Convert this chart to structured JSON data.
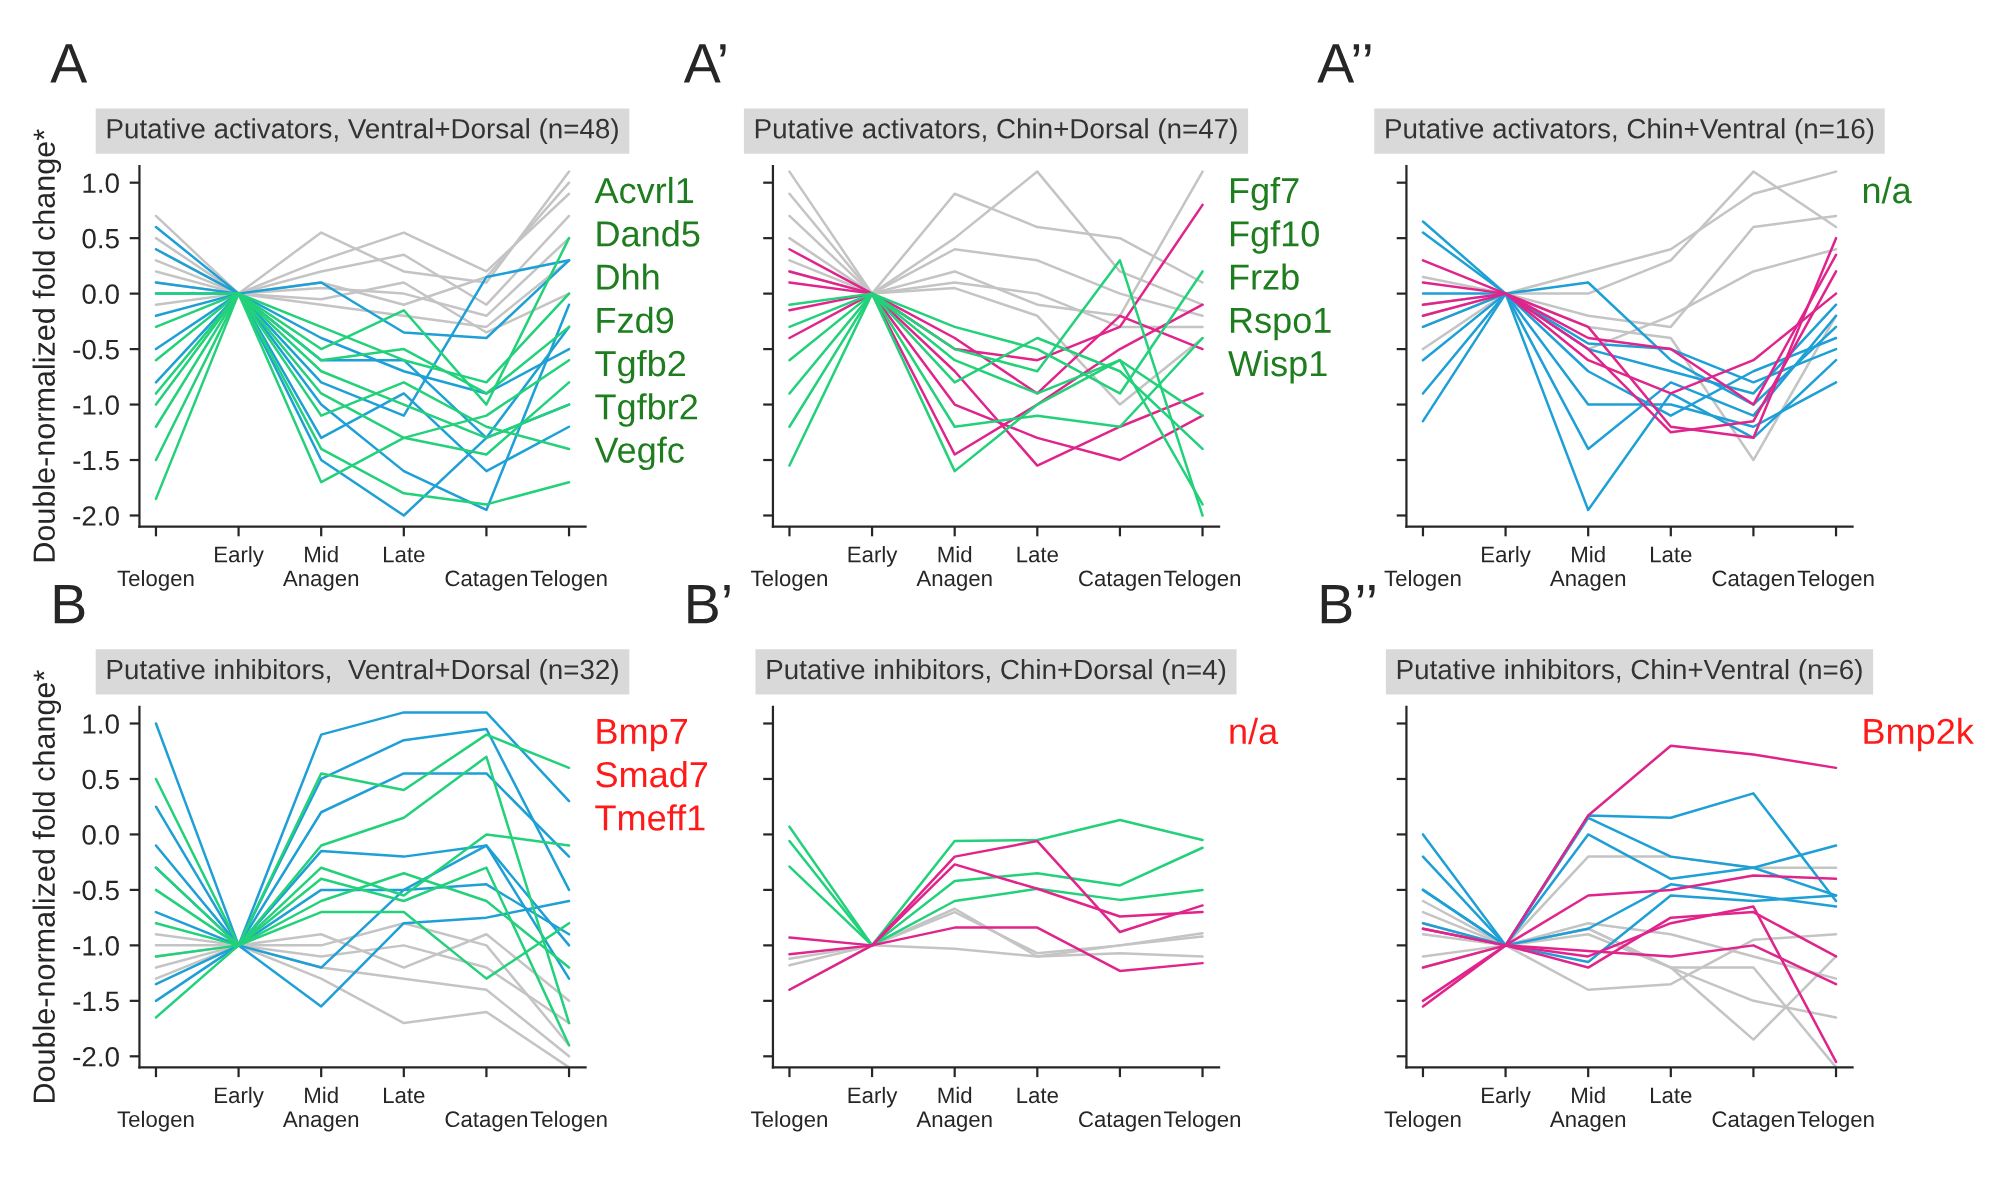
{
  "chart_data": [
    {
      "type": "line",
      "title": "Putative activators, Ventral+Dorsal (n=48)",
      "ylabel": "Double-normalized fold change*",
      "annotations": [
        "A",
        "Acvrl1",
        "Dand5",
        "Dhh",
        "Fzd9",
        "Tgfb2",
        "Tgfbr2",
        "Vegfc"
      ],
      "categories": [
        "\nTelogen",
        "Early\n",
        "Mid\nAnagen",
        "Late\n",
        "\nCatagen",
        "\nTelogen"
      ],
      "ylim": [
        -2.1,
        1.15
      ],
      "yticks": [
        {
          "value": -2.0,
          "label": "-2.0"
        },
        {
          "value": -1.5,
          "label": "-1.5"
        },
        {
          "value": -1.0,
          "label": "-1.0"
        },
        {
          "value": -0.5,
          "label": "-0.5"
        },
        {
          "value": 0.0,
          "label": "0.0"
        },
        {
          "value": 0.5,
          "label": "0.5"
        },
        {
          "value": 1.0,
          "label": "1.0"
        }
      ],
      "grid": false,
      "legend": false,
      "marker": "none",
      "line_style": "solid",
      "series": [
        {
          "color": "#c4c4c4",
          "values": [
            0.7,
            0,
            0.55,
            0.2,
            0.1,
            1.1
          ]
        },
        {
          "color": "#c4c4c4",
          "values": [
            0.5,
            0,
            0.3,
            0.55,
            0.2,
            0.9
          ]
        },
        {
          "color": "#c4c4c4",
          "values": [
            0.3,
            0,
            0.2,
            0.35,
            -0.1,
            0.7
          ]
        },
        {
          "color": "#c4c4c4",
          "values": [
            0.1,
            0,
            0.05,
            0.0,
            -0.2,
            0.5
          ]
        },
        {
          "color": "#c4c4c4",
          "values": [
            -0.1,
            0,
            -0.1,
            -0.2,
            -0.3,
            0.3
          ]
        },
        {
          "color": "#c4c4c4",
          "values": [
            0.2,
            0,
            -0.05,
            0.1,
            -0.35,
            0.0
          ]
        },
        {
          "color": "#c4c4c4",
          "values": [
            0.4,
            0,
            0.1,
            -0.1,
            0.15,
            1.0
          ]
        },
        {
          "color": "#1ea0d6",
          "values": [
            0.6,
            0,
            0.1,
            -0.35,
            -0.4,
            0.3
          ]
        },
        {
          "color": "#1ea0d6",
          "values": [
            0.4,
            0,
            -0.6,
            -0.6,
            -1.3,
            -0.3
          ]
        },
        {
          "color": "#1ea0d6",
          "values": [
            0.1,
            0,
            -1.5,
            -2.0,
            -1.3,
            -1.0
          ]
        },
        {
          "color": "#1ea0d6",
          "values": [
            -0.2,
            0,
            -0.8,
            -1.1,
            0.15,
            0.3
          ]
        },
        {
          "color": "#1ea0d6",
          "values": [
            -0.5,
            0,
            -1.0,
            -1.6,
            -1.95,
            -0.1
          ]
        },
        {
          "color": "#1ea0d6",
          "values": [
            0.0,
            0,
            -0.4,
            -0.7,
            -0.9,
            -0.5
          ]
        },
        {
          "color": "#1ea0d6",
          "values": [
            -0.8,
            0,
            -1.3,
            -0.9,
            -1.6,
            -1.2
          ]
        },
        {
          "color": "#22d17a",
          "values": [
            -1.85,
            0,
            -1.7,
            -1.3,
            -1.1,
            -0.6
          ]
        },
        {
          "color": "#22d17a",
          "values": [
            -1.5,
            0,
            -1.4,
            -1.8,
            -1.9,
            -1.7
          ]
        },
        {
          "color": "#22d17a",
          "values": [
            -1.2,
            0,
            -0.5,
            -0.15,
            -1.0,
            0.5
          ]
        },
        {
          "color": "#22d17a",
          "values": [
            -0.9,
            0,
            -0.9,
            -1.3,
            -1.45,
            -0.8
          ]
        },
        {
          "color": "#22d17a",
          "values": [
            -0.6,
            0,
            -0.6,
            -0.5,
            -0.9,
            -0.3
          ]
        },
        {
          "color": "#22d17a",
          "values": [
            -0.3,
            0,
            -1.1,
            -0.8,
            -1.2,
            -1.4
          ]
        },
        {
          "color": "#22d17a",
          "values": [
            0.0,
            0,
            -0.3,
            -0.6,
            -0.8,
            0.0
          ]
        },
        {
          "color": "#22d17a",
          "values": [
            -1.0,
            0,
            -0.7,
            -1.0,
            -1.3,
            -1.0
          ]
        }
      ]
    },
    {
      "type": "line",
      "title": "Putative activators, Chin+Dorsal (n=47)",
      "annotations": [
        "A’",
        "Fgf7",
        "Fgf10",
        "Frzb",
        "Rspo1",
        "Wisp1"
      ],
      "categories": [
        "\nTelogen",
        "Early\n",
        "Mid\nAnagen",
        "Late\n",
        "\nCatagen",
        "\nTelogen"
      ],
      "ylim": [
        -2.1,
        1.15
      ],
      "yticks": [
        -2.0,
        -1.5,
        -1.0,
        -0.5,
        0.0,
        0.5,
        1.0
      ],
      "tick_labels": "x",
      "grid": false,
      "legend": false,
      "marker": "none",
      "line_style": "solid",
      "series": [
        {
          "color": "#c4c4c4",
          "values": [
            1.1,
            0,
            0.9,
            0.6,
            0.5,
            0.1
          ]
        },
        {
          "color": "#c4c4c4",
          "values": [
            0.9,
            0,
            0.5,
            1.1,
            0.2,
            -0.1
          ]
        },
        {
          "color": "#c4c4c4",
          "values": [
            0.7,
            0,
            0.4,
            0.3,
            0.0,
            -0.2
          ]
        },
        {
          "color": "#c4c4c4",
          "values": [
            0.5,
            0,
            0.2,
            -0.1,
            -0.2,
            1.1
          ]
        },
        {
          "color": "#c4c4c4",
          "values": [
            0.3,
            0,
            0.1,
            0.0,
            -0.3,
            -0.3
          ]
        },
        {
          "color": "#c4c4c4",
          "values": [
            0.2,
            0,
            0.05,
            -0.2,
            -1.0,
            -0.4
          ]
        },
        {
          "color": "#e0248c",
          "values": [
            0.4,
            0,
            -0.5,
            -0.6,
            -0.3,
            0.8
          ]
        },
        {
          "color": "#e0248c",
          "values": [
            0.2,
            0,
            -1.45,
            -1.0,
            -0.5,
            -0.1
          ]
        },
        {
          "color": "#e0248c",
          "values": [
            0.1,
            0,
            -0.7,
            -1.55,
            -1.2,
            -0.9
          ]
        },
        {
          "color": "#e0248c",
          "values": [
            -0.15,
            0,
            -1.0,
            -1.3,
            -1.5,
            -1.1
          ]
        },
        {
          "color": "#e0248c",
          "values": [
            -0.4,
            0,
            -0.4,
            -0.9,
            -0.2,
            -0.5
          ]
        },
        {
          "color": "#22d17a",
          "values": [
            -1.55,
            0,
            -1.6,
            -1.0,
            -0.6,
            -1.9
          ]
        },
        {
          "color": "#22d17a",
          "values": [
            -1.2,
            0,
            -1.2,
            -1.1,
            -1.2,
            -0.4
          ]
        },
        {
          "color": "#22d17a",
          "values": [
            -0.9,
            0,
            -0.5,
            -0.7,
            0.3,
            -2.0
          ]
        },
        {
          "color": "#22d17a",
          "values": [
            -0.6,
            0,
            -0.8,
            -0.4,
            -0.7,
            -1.4
          ]
        },
        {
          "color": "#22d17a",
          "values": [
            -0.3,
            0,
            -0.3,
            -0.5,
            -0.9,
            0.2
          ]
        },
        {
          "color": "#22d17a",
          "values": [
            -0.1,
            0,
            -0.6,
            -0.9,
            -0.6,
            -1.1
          ]
        }
      ]
    },
    {
      "type": "line",
      "title": "Putative activators, Chin+Ventral (n=16)",
      "annotations": [
        "A’’",
        "n/a"
      ],
      "categories": [
        "\nTelogen",
        "Early\n",
        "Mid\nAnagen",
        "Late\n",
        "\nCatagen",
        "\nTelogen"
      ],
      "ylim": [
        -2.1,
        1.15
      ],
      "yticks": [
        -2.0,
        -1.5,
        -1.0,
        -0.5,
        0.0,
        0.5,
        1.0
      ],
      "tick_labels": "x",
      "grid": false,
      "legend": false,
      "marker": "none",
      "line_style": "solid",
      "series": [
        {
          "color": "#c4c4c4",
          "values": [
            0.15,
            0,
            0.2,
            0.4,
            0.9,
            1.1
          ]
        },
        {
          "color": "#c4c4c4",
          "values": [
            -0.1,
            0,
            0.0,
            0.3,
            1.1,
            0.6
          ]
        },
        {
          "color": "#c4c4c4",
          "values": [
            -0.3,
            0,
            -0.2,
            -0.3,
            0.6,
            0.7
          ]
        },
        {
          "color": "#c4c4c4",
          "values": [
            -0.5,
            0,
            -0.5,
            -0.2,
            0.2,
            0.4
          ]
        },
        {
          "color": "#c4c4c4",
          "values": [
            -0.2,
            0,
            -0.3,
            -0.4,
            -1.5,
            -0.2
          ]
        },
        {
          "color": "#1ea0d6",
          "values": [
            0.65,
            0,
            0.1,
            -0.6,
            -1.0,
            -0.3
          ]
        },
        {
          "color": "#1ea0d6",
          "values": [
            0.55,
            0,
            -0.45,
            -0.5,
            -0.8,
            -0.5
          ]
        },
        {
          "color": "#1ea0d6",
          "values": [
            -0.9,
            0,
            -1.95,
            -0.9,
            -1.3,
            -0.6
          ]
        },
        {
          "color": "#1ea0d6",
          "values": [
            -0.6,
            0,
            -1.4,
            -0.8,
            -1.1,
            -0.2
          ]
        },
        {
          "color": "#1ea0d6",
          "values": [
            -0.3,
            0,
            -1.0,
            -1.0,
            -1.2,
            -0.8
          ]
        },
        {
          "color": "#1ea0d6",
          "values": [
            0.0,
            0,
            -0.5,
            -0.7,
            -0.9,
            -0.1
          ]
        },
        {
          "color": "#1ea0d6",
          "values": [
            -1.15,
            0,
            -0.7,
            -1.1,
            -0.7,
            -0.4
          ]
        },
        {
          "color": "#e0248c",
          "values": [
            0.3,
            0,
            -0.3,
            -1.2,
            -1.3,
            0.5
          ]
        },
        {
          "color": "#e0248c",
          "values": [
            0.1,
            0,
            -0.5,
            -1.25,
            -1.15,
            0.2
          ]
        },
        {
          "color": "#e0248c",
          "values": [
            -0.1,
            0,
            -0.6,
            -0.9,
            -0.6,
            0.0
          ]
        },
        {
          "color": "#e0248c",
          "values": [
            -0.2,
            0,
            -0.4,
            -0.5,
            -1.0,
            0.35
          ]
        }
      ]
    },
    {
      "type": "line",
      "title": "Putative inhibitors,  Ventral+Dorsal (n=32)",
      "ylabel": "Double-normalized fold change*",
      "annotations": [
        "B",
        "Bmp7",
        "Smad7",
        "Tmeff1"
      ],
      "categories": [
        "\nTelogen",
        "Early\n",
        "Mid\nAnagen",
        "Late\n",
        "\nCatagen",
        "\nTelogen"
      ],
      "ylim": [
        -2.1,
        1.15
      ],
      "yticks": [
        {
          "value": -2.0,
          "label": "-2.0"
        },
        {
          "value": -1.5,
          "label": "-1.5"
        },
        {
          "value": -1.0,
          "label": "-1.0"
        },
        {
          "value": -0.5,
          "label": "-0.5"
        },
        {
          "value": 0.0,
          "label": "0.0"
        },
        {
          "value": 0.5,
          "label": "0.5"
        },
        {
          "value": 1.0,
          "label": "1.0"
        }
      ],
      "grid": false,
      "legend": false,
      "marker": "none",
      "line_style": "solid",
      "series": [
        {
          "color": "#c4c4c4",
          "values": [
            -1.2,
            -1,
            -1.3,
            -1.7,
            -1.6,
            -2.1
          ]
        },
        {
          "color": "#c4c4c4",
          "values": [
            -1.3,
            -1,
            -1.2,
            -1.3,
            -1.4,
            -2.0
          ]
        },
        {
          "color": "#c4c4c4",
          "values": [
            -1.1,
            -1,
            -1.1,
            -1.0,
            -1.2,
            -1.7
          ]
        },
        {
          "color": "#c4c4c4",
          "values": [
            -1.0,
            -1,
            -0.9,
            -1.2,
            -0.9,
            -1.5
          ]
        },
        {
          "color": "#c4c4c4",
          "values": [
            -0.9,
            -1,
            -1.0,
            -0.8,
            -1.0,
            -1.9
          ]
        },
        {
          "color": "#1ea0d6",
          "values": [
            1.0,
            -1,
            0.9,
            1.1,
            1.1,
            0.3
          ]
        },
        {
          "color": "#1ea0d6",
          "values": [
            0.25,
            -1,
            0.5,
            0.85,
            0.95,
            -0.5
          ]
        },
        {
          "color": "#1ea0d6",
          "values": [
            -0.3,
            -1,
            0.2,
            0.55,
            0.55,
            -0.2
          ]
        },
        {
          "color": "#1ea0d6",
          "values": [
            -0.7,
            -1,
            -0.15,
            -0.2,
            -0.1,
            -1.3
          ]
        },
        {
          "color": "#1ea0d6",
          "values": [
            -1.35,
            -1,
            -1.55,
            -0.8,
            -0.75,
            -0.6
          ]
        },
        {
          "color": "#1ea0d6",
          "values": [
            -1.5,
            -1,
            -1.2,
            -0.5,
            -0.45,
            -0.9
          ]
        },
        {
          "color": "#1ea0d6",
          "values": [
            -0.1,
            -1,
            -0.5,
            -0.5,
            -0.1,
            -1.0
          ]
        },
        {
          "color": "#22d17a",
          "values": [
            0.5,
            -1,
            0.55,
            0.4,
            0.9,
            0.6
          ]
        },
        {
          "color": "#22d17a",
          "values": [
            -1.65,
            -1,
            -0.1,
            0.15,
            0.7,
            -1.7
          ]
        },
        {
          "color": "#22d17a",
          "values": [
            -0.5,
            -1,
            -0.4,
            -0.6,
            -0.3,
            -1.9
          ]
        },
        {
          "color": "#22d17a",
          "values": [
            -0.8,
            -1,
            -0.3,
            -0.55,
            0.0,
            -0.1
          ]
        },
        {
          "color": "#22d17a",
          "values": [
            -1.1,
            -1,
            -0.7,
            -0.7,
            -1.3,
            -0.8
          ]
        },
        {
          "color": "#22d17a",
          "values": [
            -0.3,
            -1,
            -0.6,
            -0.35,
            -0.6,
            -1.2
          ]
        }
      ]
    },
    {
      "type": "line",
      "title": "Putative inhibitors, Chin+Dorsal (n=4)",
      "annotations": [
        "B’",
        "n/a"
      ],
      "categories": [
        "\nTelogen",
        "Early\n",
        "Mid\nAnagen",
        "Late\n",
        "\nCatagen",
        "\nTelogen"
      ],
      "ylim": [
        -2.1,
        1.15
      ],
      "yticks": [
        -2.0,
        -1.5,
        -1.0,
        -0.5,
        0.0,
        0.5,
        1.0
      ],
      "tick_labels": "x",
      "grid": false,
      "legend": false,
      "marker": "none",
      "line_style": "solid",
      "series": [
        {
          "color": "#c4c4c4",
          "values": [
            -1.12,
            -1,
            -0.67,
            -1.1,
            -1.0,
            -0.89
          ]
        },
        {
          "color": "#c4c4c4",
          "values": [
            -1.18,
            -1,
            -0.7,
            -1.07,
            -1.0,
            -0.92
          ]
        },
        {
          "color": "#c4c4c4",
          "values": [
            -1.4,
            -1,
            -1.03,
            -1.1,
            -1.07,
            -1.1
          ]
        },
        {
          "color": "#22d17a",
          "values": [
            0.07,
            -1,
            -0.06,
            -0.05,
            0.13,
            -0.05
          ]
        },
        {
          "color": "#22d17a",
          "values": [
            -0.06,
            -1,
            -0.42,
            -0.35,
            -0.46,
            -0.12
          ]
        },
        {
          "color": "#22d17a",
          "values": [
            -0.29,
            -1,
            -0.6,
            -0.49,
            -0.59,
            -0.5
          ]
        },
        {
          "color": "#e0248c",
          "values": [
            -0.93,
            -1,
            -0.2,
            -0.06,
            -0.88,
            -0.64
          ]
        },
        {
          "color": "#e0248c",
          "values": [
            -1.08,
            -1,
            -0.27,
            -0.49,
            -0.74,
            -0.7
          ]
        },
        {
          "color": "#e0248c",
          "values": [
            -1.4,
            -1,
            -0.84,
            -0.84,
            -1.23,
            -1.16
          ]
        }
      ]
    },
    {
      "type": "line",
      "title": "Putative inhibitors, Chin+Ventral (n=6)",
      "annotations": [
        "B’’",
        "Bmp2k"
      ],
      "categories": [
        "\nTelogen",
        "Early\n",
        "Mid\nAnagen",
        "Late\n",
        "\nCatagen",
        "\nTelogen"
      ],
      "ylim": [
        -2.1,
        1.15
      ],
      "yticks": [
        -2.0,
        -1.5,
        -1.0,
        -0.5,
        0.0,
        0.5,
        1.0
      ],
      "tick_labels": "x",
      "grid": false,
      "legend": false,
      "marker": "none",
      "line_style": "solid",
      "series": [
        {
          "color": "#c4c4c4",
          "values": [
            -0.8,
            -1,
            -0.2,
            -0.2,
            -0.3,
            -0.3
          ]
        },
        {
          "color": "#c4c4c4",
          "values": [
            -1.1,
            -1,
            -1.4,
            -1.35,
            -0.95,
            -0.9
          ]
        },
        {
          "color": "#c4c4c4",
          "values": [
            -0.7,
            -1,
            -0.8,
            -0.9,
            -1.1,
            -1.3
          ]
        },
        {
          "color": "#c4c4c4",
          "values": [
            -1.2,
            -1,
            -0.85,
            -1.2,
            -1.85,
            -1.1
          ]
        },
        {
          "color": "#c4c4c4",
          "values": [
            -0.9,
            -1,
            -0.85,
            -1.2,
            -1.5,
            -1.65
          ]
        },
        {
          "color": "#c4c4c4",
          "values": [
            -0.6,
            -1,
            -0.9,
            -1.2,
            -1.2,
            -2.1
          ]
        },
        {
          "color": "#1ea0d6",
          "values": [
            0.0,
            -1,
            0.17,
            0.15,
            0.37,
            -0.6
          ]
        },
        {
          "color": "#1ea0d6",
          "values": [
            -0.2,
            -1,
            0.0,
            -0.4,
            -0.3,
            -0.55
          ]
        },
        {
          "color": "#1ea0d6",
          "values": [
            -0.5,
            -1,
            0.15,
            -0.2,
            -0.3,
            -0.1
          ]
        },
        {
          "color": "#1ea0d6",
          "values": [
            -0.5,
            -1,
            -1.15,
            -0.55,
            -0.6,
            -0.55
          ]
        },
        {
          "color": "#1ea0d6",
          "values": [
            -0.8,
            -1,
            -0.85,
            -0.45,
            -0.55,
            -0.65
          ]
        },
        {
          "color": "#e0248c",
          "values": [
            -1.55,
            -1,
            0.17,
            0.8,
            0.72,
            0.6
          ]
        },
        {
          "color": "#e0248c",
          "values": [
            -1.2,
            -1,
            -0.55,
            -0.5,
            -0.37,
            -0.4
          ]
        },
        {
          "color": "#e0248c",
          "values": [
            -1.5,
            -1,
            -1.2,
            -0.75,
            -0.7,
            -1.1
          ]
        },
        {
          "color": "#e0248c",
          "values": [
            -0.85,
            -1,
            -1.05,
            -1.1,
            -1.0,
            -1.35
          ]
        },
        {
          "color": "#e0248c",
          "values": [
            -0.85,
            -1,
            -1.1,
            -0.8,
            -0.65,
            -2.05
          ]
        }
      ]
    }
  ]
}
